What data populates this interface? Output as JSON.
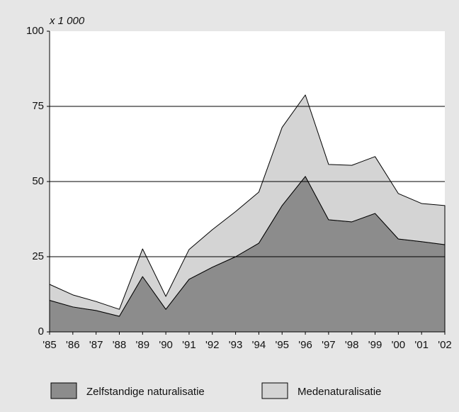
{
  "chart_data": {
    "type": "stacked_area",
    "y_unit_label": "x 1 000",
    "categories": [
      "'85",
      "'86",
      "'87",
      "'88",
      "'89",
      "'90",
      "'91",
      "'92",
      "'93",
      "'94",
      "'95",
      "'96",
      "'97",
      "'98",
      "'99",
      "'00",
      "'01",
      "'02"
    ],
    "series": [
      {
        "name": "Zelfstandige naturalisatie",
        "color": "#8c8c8c",
        "values": [
          10.5,
          8.3,
          7.1,
          5.2,
          18.4,
          7.5,
          17.5,
          21.5,
          25,
          29.5,
          42,
          51.7,
          37.3,
          36.6,
          39.4,
          30.9,
          30,
          29
        ]
      },
      {
        "name": "Medenaturalisatie",
        "color": "#d4d4d4",
        "values": [
          5.3,
          4.0,
          3.0,
          2.3,
          9.2,
          4.3,
          9.9,
          12.5,
          15,
          17,
          26,
          27.1,
          18.4,
          18.8,
          18.9,
          15.1,
          12.7,
          13
        ]
      }
    ],
    "ylim": [
      0,
      100
    ],
    "yticks": [
      0,
      25,
      50,
      75,
      100
    ],
    "grid": true,
    "legend": "bottom"
  }
}
